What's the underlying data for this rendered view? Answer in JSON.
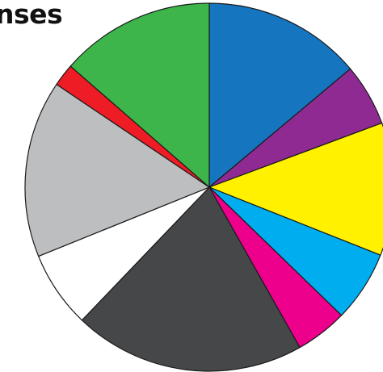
{
  "chart_data": {
    "type": "pie",
    "title": "nses",
    "slices": [
      {
        "value": 14.0,
        "color": "#1575be"
      },
      {
        "value": 5.5,
        "color": "#8e2a91"
      },
      {
        "value": 11.8,
        "color": "#fff100"
      },
      {
        "value": 6.3,
        "color": "#00adee"
      },
      {
        "value": 4.6,
        "color": "#ec008c"
      },
      {
        "value": 20.5,
        "color": "#464749"
      },
      {
        "value": 6.8,
        "color": "#ffffff"
      },
      {
        "value": 15.7,
        "color": "#bcbec0"
      },
      {
        "value": 2.0,
        "color": "#ee1c25"
      },
      {
        "value": 13.7,
        "color": "#3db54a"
      }
    ]
  }
}
